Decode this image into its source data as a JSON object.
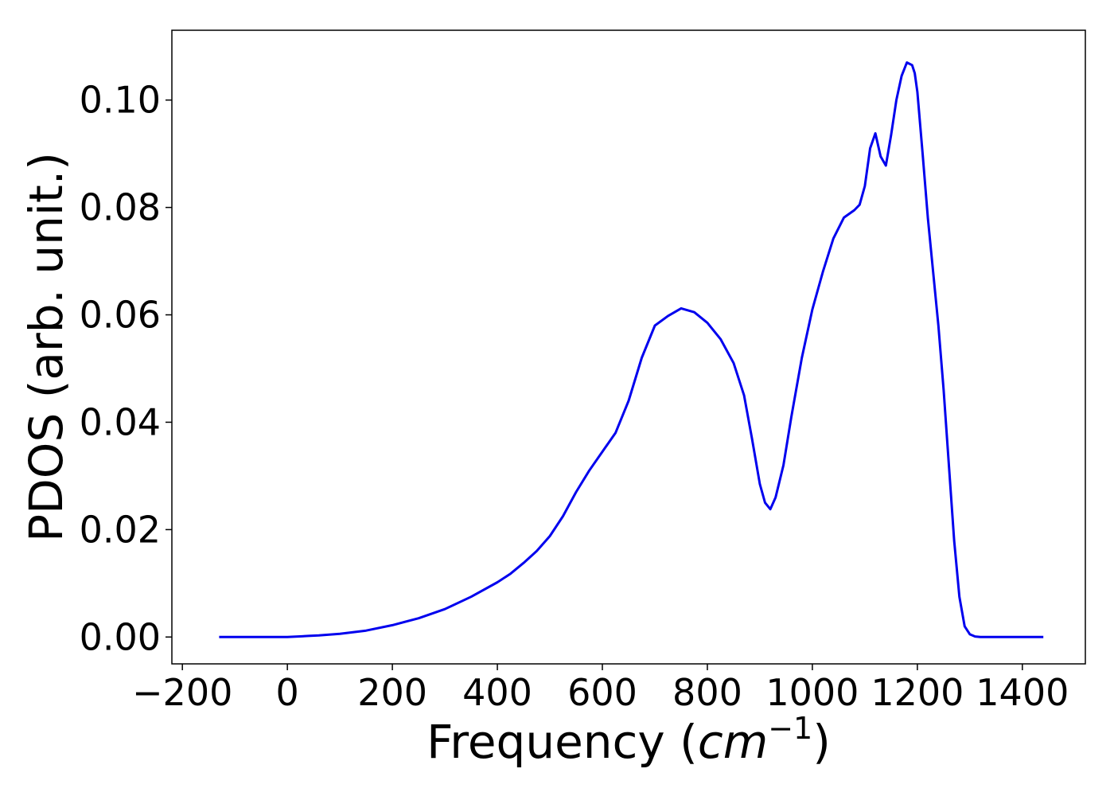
{
  "chart_data": {
    "type": "line",
    "title": "",
    "xlabel_main": "Frequency (",
    "xlabel_math": "cm",
    "xlabel_sup": "−1",
    "xlabel_close": ")",
    "ylabel": "PDOS (arb. unit.)",
    "xlim": [
      -220,
      1520
    ],
    "ylim": [
      -0.005,
      0.113
    ],
    "grid": false,
    "legend": "none",
    "line_color": "#0000ee",
    "xticks": [
      -200,
      0,
      200,
      400,
      600,
      800,
      1000,
      1200,
      1400
    ],
    "xtick_labels": [
      "−200",
      "0",
      "200",
      "400",
      "600",
      "800",
      "1000",
      "1200",
      "1400"
    ],
    "yticks": [
      0.0,
      0.02,
      0.04,
      0.06,
      0.08,
      0.1
    ],
    "ytick_labels": [
      "0.00",
      "0.02",
      "0.04",
      "0.06",
      "0.08",
      "0.10"
    ],
    "series": [
      {
        "x": [
          -130,
          -100,
          -50,
          0,
          40,
          60,
          100,
          150,
          200,
          250,
          300,
          350,
          400,
          425,
          450,
          475,
          500,
          525,
          550,
          575,
          600,
          625,
          650,
          675,
          700,
          725,
          750,
          775,
          800,
          825,
          850,
          870,
          885,
          900,
          910,
          920,
          930,
          945,
          960,
          980,
          1000,
          1020,
          1040,
          1060,
          1080,
          1090,
          1100,
          1110,
          1120,
          1130,
          1140,
          1150,
          1160,
          1170,
          1180,
          1190,
          1195,
          1200,
          1210,
          1220,
          1230,
          1240,
          1250,
          1260,
          1270,
          1280,
          1290,
          1300,
          1310,
          1320,
          1330,
          1340,
          1360,
          1400,
          1440
        ],
        "y": [
          0.0,
          0.0,
          0.0,
          0.0,
          0.0002,
          0.0003,
          0.0006,
          0.0012,
          0.0022,
          0.0035,
          0.0052,
          0.0075,
          0.0102,
          0.0118,
          0.0138,
          0.016,
          0.0188,
          0.0225,
          0.027,
          0.031,
          0.0345,
          0.038,
          0.044,
          0.052,
          0.058,
          0.0598,
          0.0612,
          0.0605,
          0.0585,
          0.0555,
          0.051,
          0.045,
          0.037,
          0.0285,
          0.025,
          0.0238,
          0.026,
          0.032,
          0.041,
          0.052,
          0.061,
          0.068,
          0.0742,
          0.0781,
          0.0795,
          0.0805,
          0.084,
          0.091,
          0.0938,
          0.0895,
          0.0878,
          0.0935,
          0.1,
          0.1045,
          0.107,
          0.1065,
          0.105,
          0.1015,
          0.09,
          0.078,
          0.068,
          0.058,
          0.046,
          0.032,
          0.018,
          0.0075,
          0.002,
          0.0005,
          0.0001,
          0.0,
          0.0,
          0.0,
          0.0,
          0.0,
          0.0
        ]
      }
    ]
  }
}
